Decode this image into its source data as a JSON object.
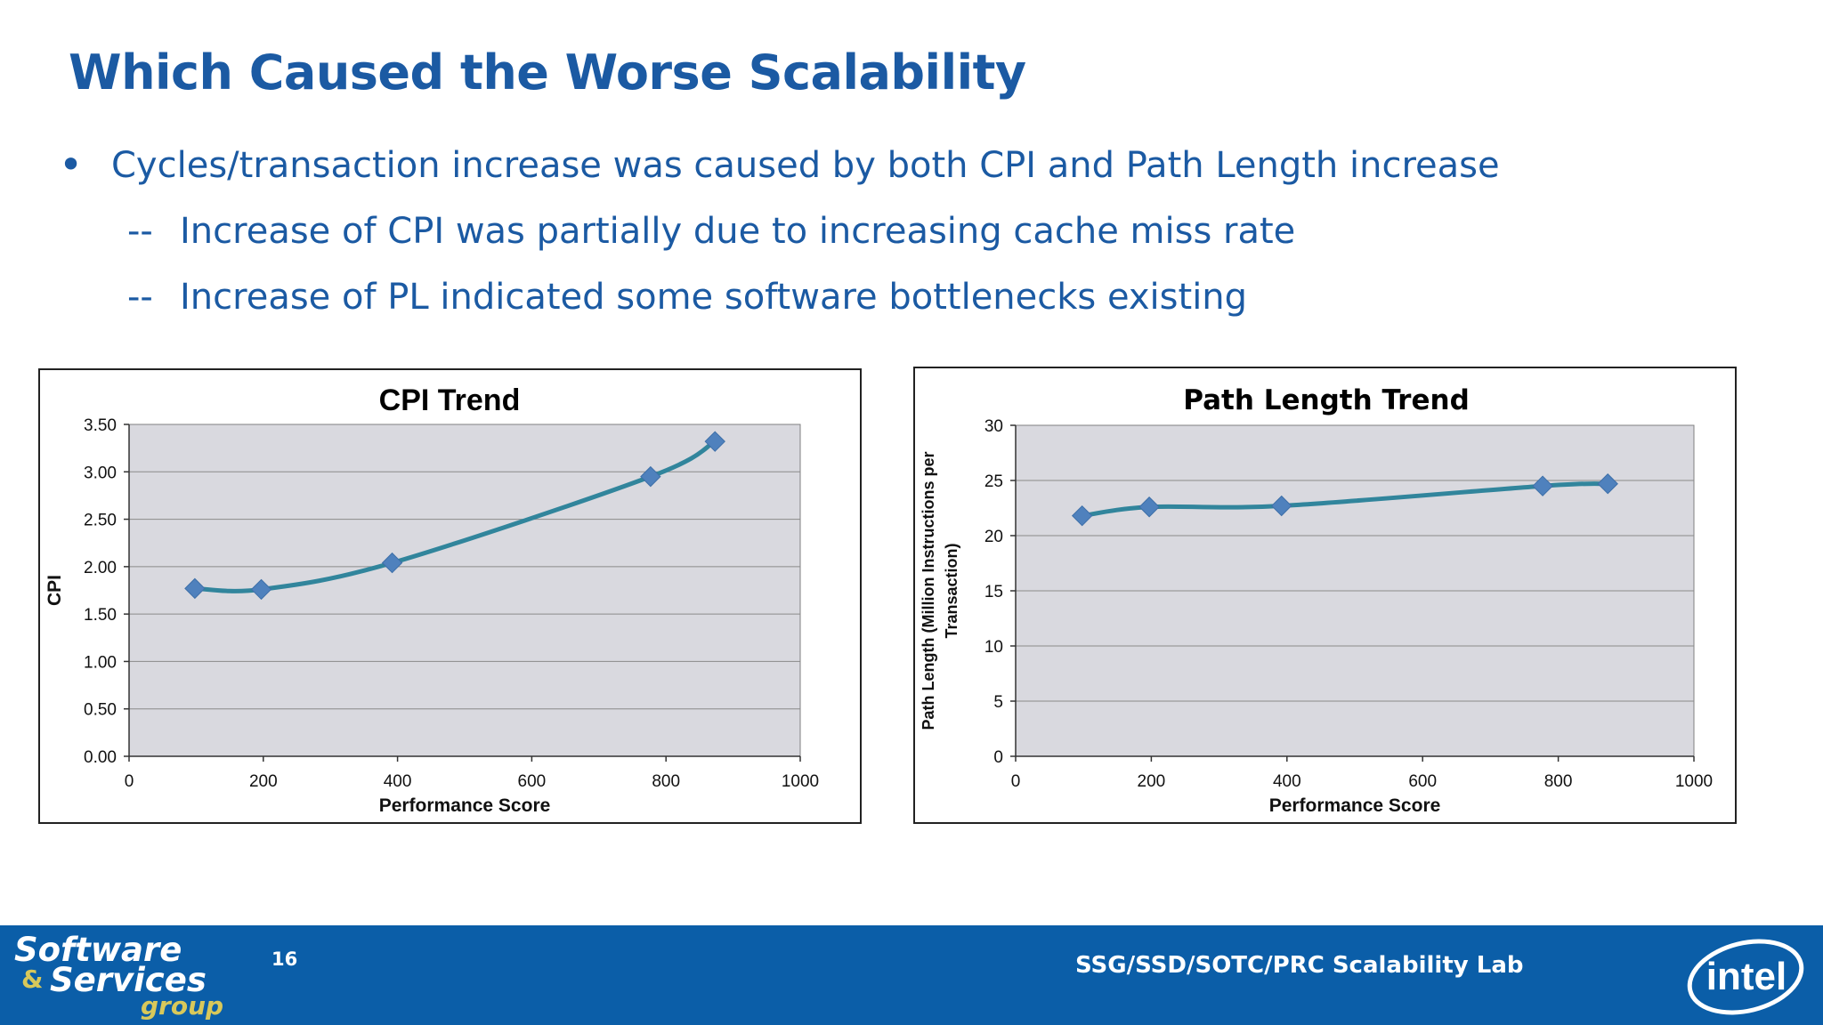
{
  "slide": {
    "title": "Which Caused the Worse Scalability",
    "bullet_main": "Cycles/transaction increase was caused by both CPI and Path Length increase",
    "sub_bullets": [
      {
        "dash": "--",
        "text": "Increase of CPI was partially due to increasing cache miss rate"
      },
      {
        "dash": "--",
        "text": "Increase of PL indicated some software bottlenecks existing"
      }
    ]
  },
  "footer": {
    "logo_line1": "Software",
    "logo_amp": "&",
    "logo_line2": "Services",
    "logo_line3": "group",
    "page_number": "16",
    "lab_name": "SSG/SSD/SOTC/PRC Scalability Lab",
    "brand_logo_text": "intel"
  },
  "colors": {
    "title_blue": "#1b5aa3",
    "footer_blue": "#0b5ea8",
    "plot_area": "#d9d9df",
    "series_line": "#31859c",
    "marker": "#4f81bd",
    "logo_gold": "#d8c85a"
  },
  "chart_data": [
    {
      "type": "line",
      "title": "CPI Trend",
      "xlabel": "Performance Score",
      "ylabel": "CPI",
      "xlim": [
        0,
        1000
      ],
      "ylim": [
        0,
        3.5
      ],
      "x_ticks": [
        "0",
        "200",
        "400",
        "600",
        "800",
        "1000"
      ],
      "y_ticks": [
        "0.00",
        "0.50",
        "1.00",
        "1.50",
        "2.00",
        "2.50",
        "3.00",
        "3.50"
      ],
      "grid": true,
      "legend": "none",
      "smooth": true,
      "series": [
        {
          "x": [
            98,
            197,
            392,
            777,
            873
          ],
          "y": [
            1.77,
            1.76,
            2.04,
            2.95,
            3.32
          ]
        }
      ]
    },
    {
      "type": "line",
      "title": "Path Length Trend",
      "xlabel": "Performance Score",
      "ylabel_lines": [
        "Path Length (Million Instructions per",
        "Transaction)"
      ],
      "xlim": [
        0,
        1000
      ],
      "ylim": [
        0,
        30
      ],
      "x_ticks": [
        "0",
        "200",
        "400",
        "600",
        "800",
        "1000"
      ],
      "y_ticks": [
        "0",
        "5",
        "10",
        "15",
        "20",
        "25",
        "30"
      ],
      "grid": true,
      "legend": "none",
      "smooth": true,
      "series": [
        {
          "x": [
            98,
            197,
            392,
            777,
            873
          ],
          "y": [
            21.8,
            22.6,
            22.7,
            24.5,
            24.7
          ]
        }
      ]
    }
  ]
}
